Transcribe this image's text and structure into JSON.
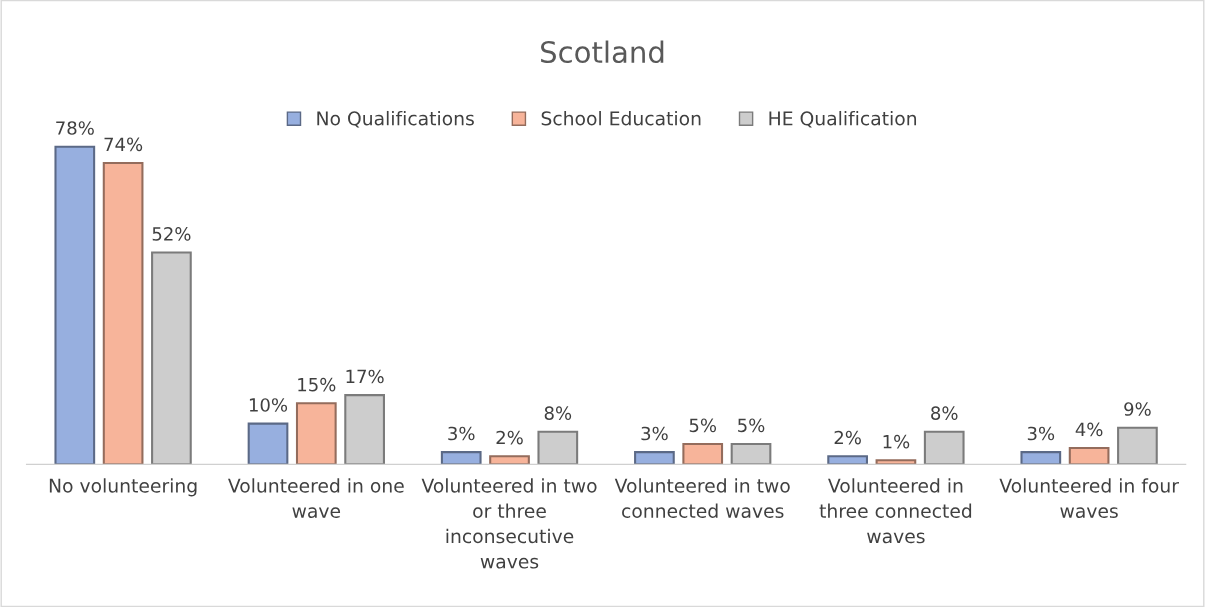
{
  "chart_data": {
    "type": "bar",
    "title": "Scotland",
    "categories": [
      "No volunteering",
      "Volunteered in one wave",
      "Volunteered in two or three inconsecutive waves",
      "Volunteered in two connected waves",
      "Volunteered in three connected waves",
      "Volunteered in four waves"
    ],
    "series": [
      {
        "name": "No Qualifications",
        "color": "#97afdf",
        "values": [
          78,
          10,
          3,
          3,
          2,
          3
        ],
        "value_labels": [
          "78%",
          "10%",
          "3%",
          "3%",
          "2%",
          "3%"
        ]
      },
      {
        "name": "School Education",
        "color": "#f7b49a",
        "values": [
          74,
          15,
          2,
          5,
          1,
          4
        ],
        "value_labels": [
          "74%",
          "15%",
          "2%",
          "5%",
          "1%",
          "4%"
        ]
      },
      {
        "name": "HE Qualification",
        "color": "#cdcdcd",
        "values": [
          52,
          17,
          8,
          5,
          8,
          9
        ],
        "value_labels": [
          "52%",
          "17%",
          "8%",
          "5%",
          "8%",
          "9%"
        ]
      }
    ],
    "legend": "top"
  }
}
